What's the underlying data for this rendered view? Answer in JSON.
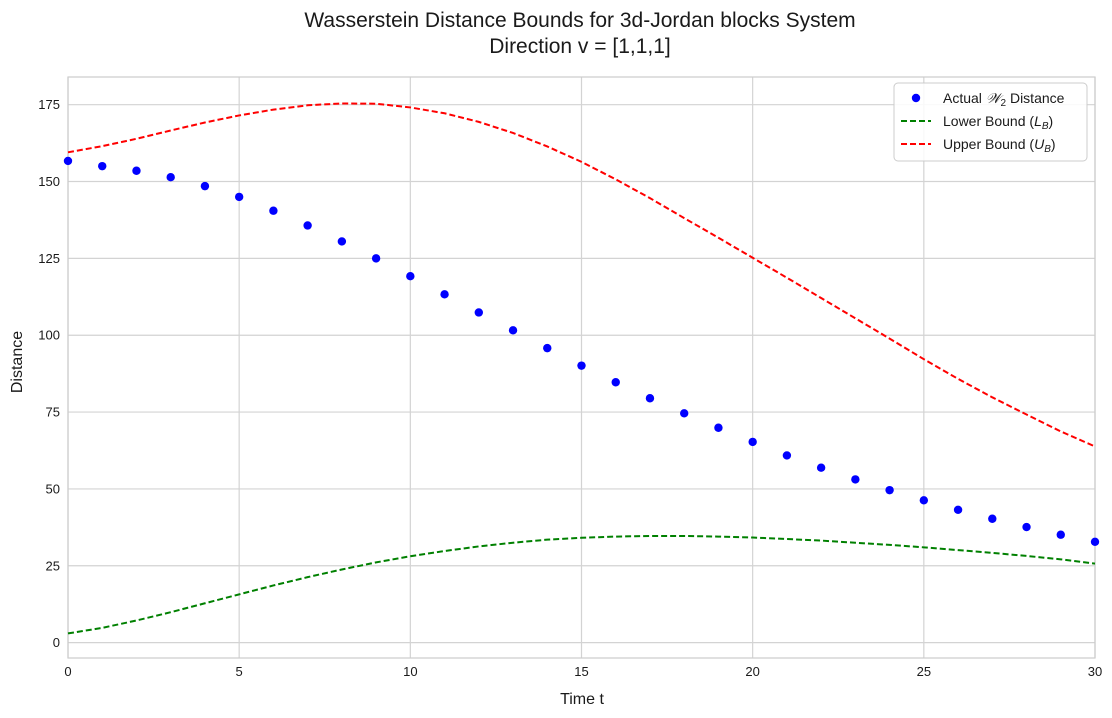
{
  "chart_data": {
    "type": "line",
    "title_line1": "Wasserstein Distance Bounds for 3d-Jordan blocks System",
    "title_line2": "Direction v = [1,1,1]",
    "xlabel": "Time t",
    "ylabel": "Distance",
    "xlim": [
      0,
      30
    ],
    "ylim": [
      -5,
      184
    ],
    "xticks": [
      0,
      5,
      10,
      15,
      20,
      25,
      30
    ],
    "yticks": [
      0,
      25,
      50,
      75,
      100,
      125,
      150,
      175
    ],
    "grid": true,
    "legend_position": "top-right",
    "series": [
      {
        "name": "Actual W2 Distance",
        "legend_prefix": "Actual ",
        "legend_math": "𝒲",
        "legend_sub": "2",
        "legend_suffix": " Distance",
        "style": "markers",
        "color": "#0000ff",
        "x": [
          0,
          1,
          2,
          3,
          4,
          5,
          6,
          7,
          8,
          9,
          10,
          11,
          12,
          13,
          14,
          15,
          16,
          17,
          18,
          19,
          20,
          21,
          22,
          23,
          24,
          25,
          26,
          27,
          28,
          29,
          30
        ],
        "values": [
          156.7,
          155,
          153.5,
          151.4,
          148.5,
          145,
          140.5,
          135.7,
          130.5,
          125,
          119.2,
          113.3,
          107.4,
          101.6,
          95.8,
          90.1,
          84.7,
          79.5,
          74.6,
          69.9,
          65.3,
          60.9,
          56.9,
          53.1,
          49.6,
          46.3,
          43.2,
          40.3,
          37.6,
          35.1,
          32.8
        ]
      },
      {
        "name": "Lower Bound (L_B)",
        "legend_prefix": "Lower Bound (",
        "legend_math": "L",
        "legend_sub": "B",
        "legend_suffix": ")",
        "style": "dashed",
        "color": "#008000",
        "x": [
          0,
          1,
          2,
          3,
          4,
          5,
          6,
          7,
          8,
          9,
          10,
          11,
          12,
          13,
          14,
          15,
          16,
          17,
          18,
          19,
          20,
          21,
          22,
          23,
          24,
          25,
          26,
          27,
          28,
          29,
          30
        ],
        "values": [
          3.0,
          4.8,
          7.2,
          9.9,
          12.8,
          15.7,
          18.6,
          21.3,
          23.8,
          26.1,
          28.1,
          29.8,
          31.3,
          32.5,
          33.5,
          34.1,
          34.5,
          34.7,
          34.7,
          34.5,
          34.2,
          33.7,
          33.2,
          32.5,
          31.8,
          31.0,
          30.1,
          29.2,
          28.2,
          27.1,
          25.7
        ]
      },
      {
        "name": "Upper Bound (U_B)",
        "legend_prefix": "Upper Bound (",
        "legend_math": "U",
        "legend_sub": "B",
        "legend_suffix": ")",
        "style": "dashed",
        "color": "#ff0000",
        "x": [
          0,
          1,
          2,
          3,
          4,
          5,
          6,
          7,
          8,
          9,
          10,
          11,
          12,
          13,
          14,
          15,
          16,
          17,
          18,
          19,
          20,
          21,
          22,
          23,
          24,
          25,
          26,
          27,
          28,
          29,
          30
        ],
        "values": [
          159.5,
          161.5,
          163.9,
          166.6,
          169.2,
          171.5,
          173.4,
          174.8,
          175.4,
          175.3,
          174.1,
          172.2,
          169.4,
          165.8,
          161.4,
          156.4,
          150.7,
          144.6,
          138.1,
          131.7,
          125.2,
          118.7,
          112.1,
          105.5,
          98.9,
          92.2,
          85.8,
          79.8,
          74.2,
          68.7,
          63.8
        ]
      }
    ]
  }
}
